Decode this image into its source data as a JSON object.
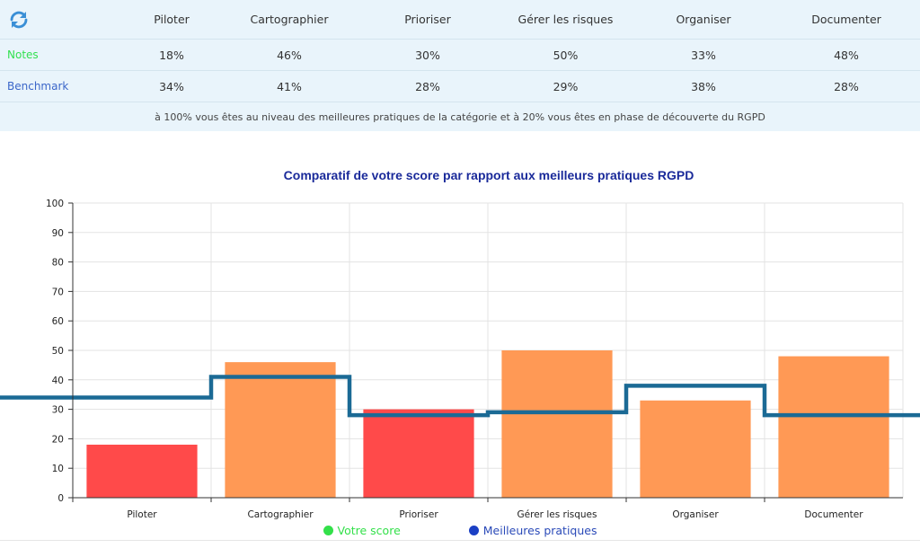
{
  "table": {
    "columns": [
      "Piloter",
      "Cartographier",
      "Prioriser",
      "Gérer les risques",
      "Organiser",
      "Documenter"
    ],
    "rows": [
      {
        "label": "Notes",
        "values": [
          "18%",
          "46%",
          "30%",
          "50%",
          "33%",
          "48%"
        ]
      },
      {
        "label": "Benchmark",
        "values": [
          "34%",
          "41%",
          "28%",
          "29%",
          "38%",
          "28%"
        ]
      }
    ],
    "note": "à 100% vous êtes au niveau des meilleures pratiques de la catégorie et à 20% vous êtes en phase de découverte du RGPD",
    "refresh_icon": "refresh-icon"
  },
  "chart_data": {
    "type": "bar",
    "title": "Comparatif de votre score par rapport aux meilleurs pratiques RGPD",
    "categories": [
      "Piloter",
      "Cartographier",
      "Prioriser",
      "Gérer les risques",
      "Organiser",
      "Documenter"
    ],
    "series": [
      {
        "name": "Votre score",
        "type": "bar",
        "values": [
          18,
          46,
          30,
          50,
          33,
          48
        ]
      },
      {
        "name": "Meilleures pratiques",
        "type": "step-line",
        "values": [
          34,
          41,
          28,
          29,
          38,
          28
        ]
      }
    ],
    "ylim": [
      0,
      100
    ],
    "yticks": [
      0,
      10,
      20,
      30,
      40,
      50,
      60,
      70,
      80,
      90,
      100
    ],
    "grid": true,
    "legend_position": "bottom",
    "colors": {
      "bar_low": "#ff4a4a",
      "bar_high": "#ff9955",
      "line": "#1b6a95",
      "legend_score": "#33e04a",
      "legend_best": "#1a3fc4",
      "legend_score_text": "#33e04a",
      "legend_best_text": "#2a4ab8"
    }
  }
}
